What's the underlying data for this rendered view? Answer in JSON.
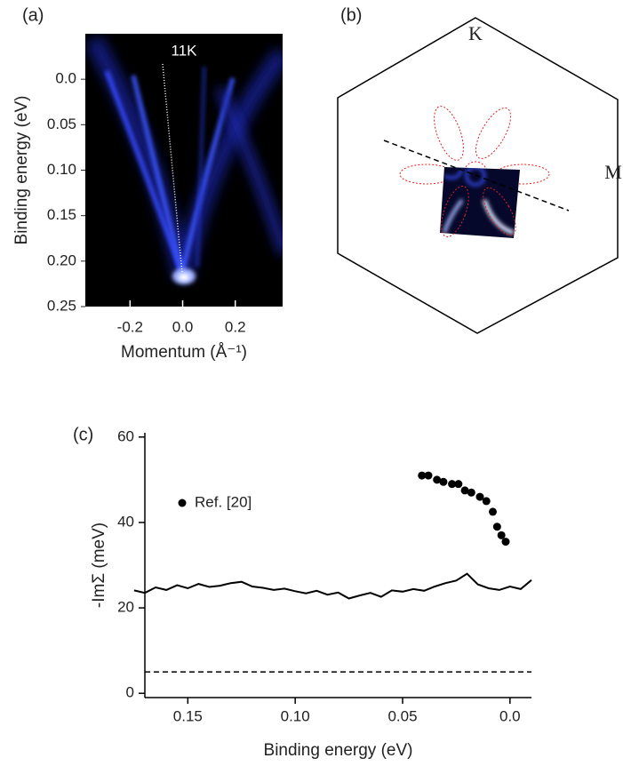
{
  "chart_data": [
    {
      "type": "image",
      "panel": "(a)",
      "annotation": "11K",
      "xlabel": "Momentum (Å⁻¹)",
      "ylabel": "Binding energy (eV)",
      "xlim": [
        -0.37,
        0.38
      ],
      "ylim": [
        0.25,
        -0.05
      ],
      "xticks": [
        -0.2,
        {
          "value": 0,
          "label": "0.0"
        },
        0.2
      ],
      "yticks": [
        {
          "value": 0,
          "label": "0.0"
        },
        0.05,
        {
          "value": 0.1,
          "label": "0.10"
        },
        0.15,
        {
          "value": 0.2,
          "label": "0.20"
        },
        0.25
      ]
    },
    {
      "type": "line",
      "panel": "(c)",
      "xlabel": "Binding energy (eV)",
      "ylabel": "-ImΣ (meV)",
      "xlim": [
        0.17,
        -0.01
      ],
      "ylim": [
        -1,
        61
      ],
      "xticks": [
        0.15,
        {
          "value": 0.1,
          "label": "0.10"
        },
        0.05,
        {
          "value": 0,
          "label": "0.0"
        }
      ],
      "yticks": [
        0,
        20,
        40,
        60
      ],
      "legend": "upper left",
      "hlines": [
        5
      ],
      "series": [
        {
          "type": "line",
          "color": "#000000",
          "x": [
            0.175,
            0.17,
            0.165,
            0.16,
            0.155,
            0.15,
            0.145,
            0.14,
            0.135,
            0.13,
            0.125,
            0.12,
            0.115,
            0.11,
            0.105,
            0.1,
            0.095,
            0.09,
            0.085,
            0.08,
            0.075,
            0.07,
            0.065,
            0.06,
            0.055,
            0.05,
            0.045,
            0.04,
            0.035,
            0.03,
            0.025,
            0.02,
            0.015,
            0.01,
            0.005,
            0,
            -0.005,
            -0.01
          ],
          "values": [
            24.1,
            23.5,
            24.8,
            24.2,
            25.3,
            24.6,
            25.6,
            24.9,
            25.2,
            25.8,
            26.1,
            25.0,
            24.7,
            24.2,
            24.5,
            23.9,
            23.4,
            24.0,
            23.1,
            23.6,
            22.2,
            22.9,
            23.5,
            22.6,
            24.1,
            23.8,
            24.4,
            24.0,
            25.0,
            25.8,
            26.4,
            28.0,
            25.5,
            24.6,
            24.2,
            25.0,
            24.4,
            26.5
          ]
        },
        {
          "type": "scatter",
          "name": "Ref. [20]",
          "color": "#000000",
          "x": [
            0.041,
            0.038,
            0.034,
            0.031,
            0.027,
            0.024,
            0.021,
            0.018,
            0.014,
            0.011,
            0.008,
            0.006,
            0.004,
            0.002
          ],
          "values": [
            51,
            51,
            50,
            49.5,
            49,
            49,
            47.5,
            47,
            46,
            45,
            42.5,
            39,
            37,
            35.5
          ]
        }
      ]
    }
  ],
  "diagram": {
    "panel": "(b)",
    "labels": [
      "K",
      "M"
    ]
  }
}
